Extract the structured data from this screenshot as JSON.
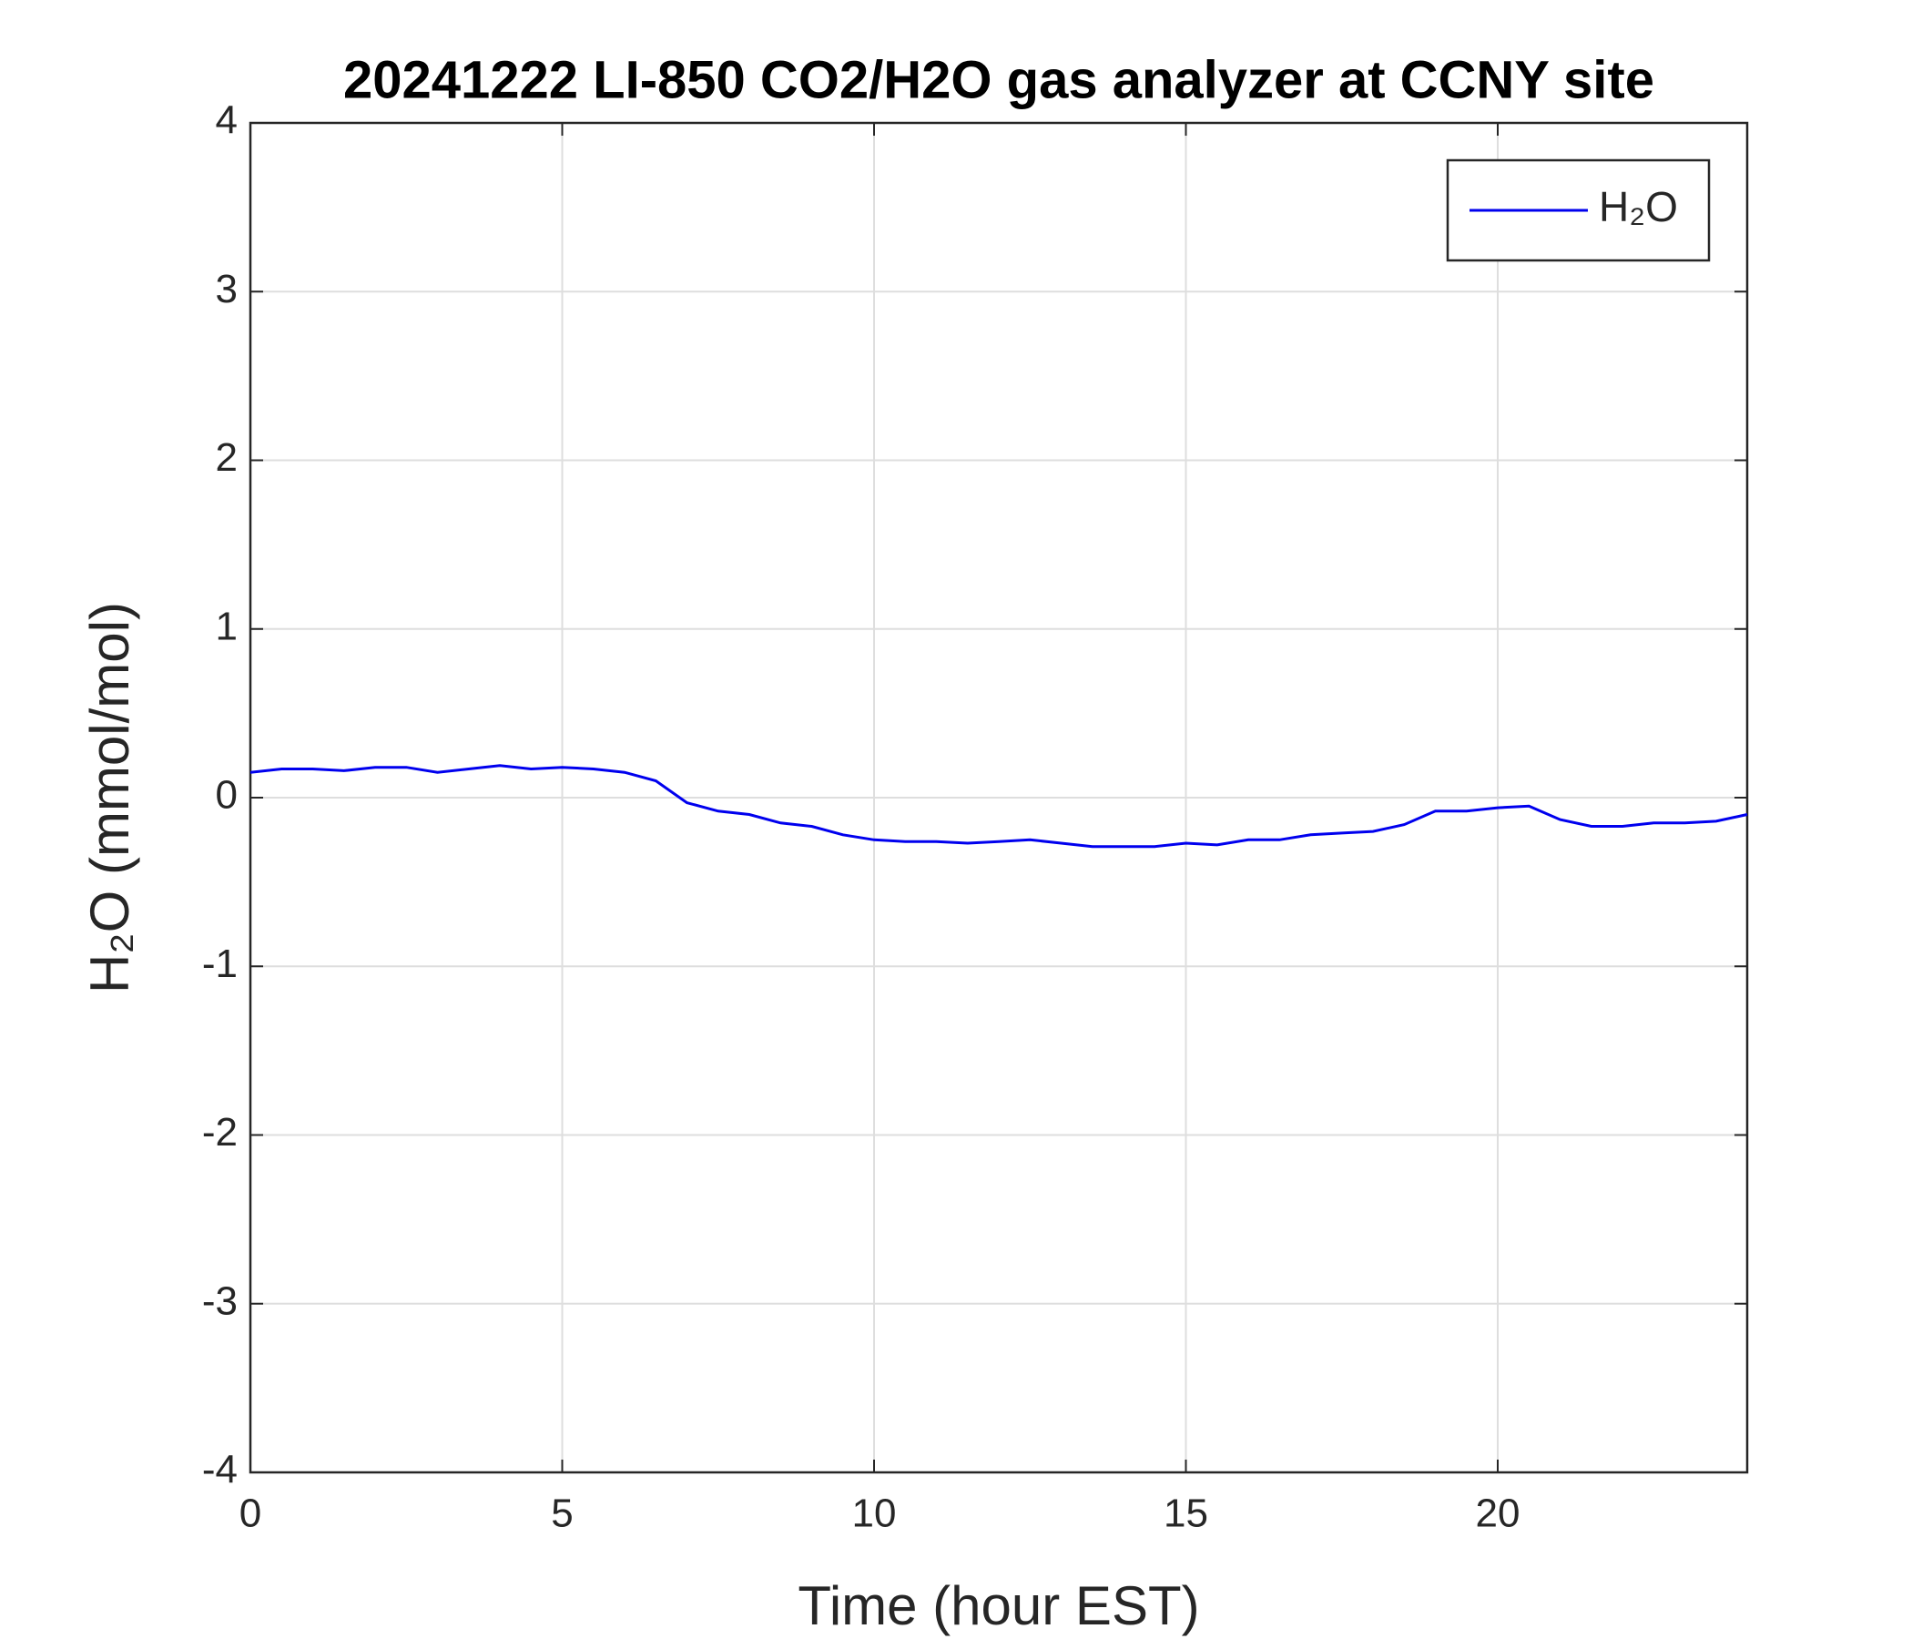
{
  "chart_data": {
    "type": "line",
    "title": "20241222 LI-850 CO2/H2O gas analyzer at CCNY site",
    "x_label": "Time (hour EST)",
    "y_label": "H₂O (mmol/mol)",
    "x": [
      0,
      0.5,
      1,
      1.5,
      2,
      2.5,
      3,
      3.5,
      4,
      4.5,
      5,
      5.5,
      6,
      6.5,
      7,
      7.5,
      8,
      8.5,
      9,
      9.5,
      10,
      10.5,
      11,
      11.5,
      12,
      12.5,
      13,
      13.5,
      14,
      14.5,
      15,
      15.5,
      16,
      16.5,
      17,
      17.5,
      18,
      18.5,
      19,
      19.5,
      20,
      20.5,
      21,
      21.5,
      22,
      22.5,
      23,
      23.5,
      24
    ],
    "series": [
      {
        "name": "H₂O",
        "color": "#0000ee",
        "values": [
          0.15,
          0.17,
          0.17,
          0.16,
          0.18,
          0.18,
          0.15,
          0.17,
          0.19,
          0.17,
          0.18,
          0.17,
          0.15,
          0.1,
          -0.03,
          -0.08,
          -0.1,
          -0.15,
          -0.17,
          -0.22,
          -0.25,
          -0.26,
          -0.26,
          -0.27,
          -0.26,
          -0.25,
          -0.27,
          -0.29,
          -0.29,
          -0.29,
          -0.27,
          -0.28,
          -0.25,
          -0.25,
          -0.22,
          -0.21,
          -0.2,
          -0.16,
          -0.08,
          -0.08,
          -0.06,
          -0.05,
          -0.13,
          -0.17,
          -0.17,
          -0.15,
          -0.15,
          -0.14,
          -0.1
        ]
      }
    ],
    "xlim": [
      0,
      24
    ],
    "xticks": [
      0,
      5,
      10,
      15,
      20
    ],
    "ylim": [
      -4,
      4
    ],
    "yticks": [
      -4,
      -3,
      -2,
      -1,
      0,
      1,
      2,
      3,
      4
    ],
    "grid": true,
    "legend": "upper right"
  }
}
